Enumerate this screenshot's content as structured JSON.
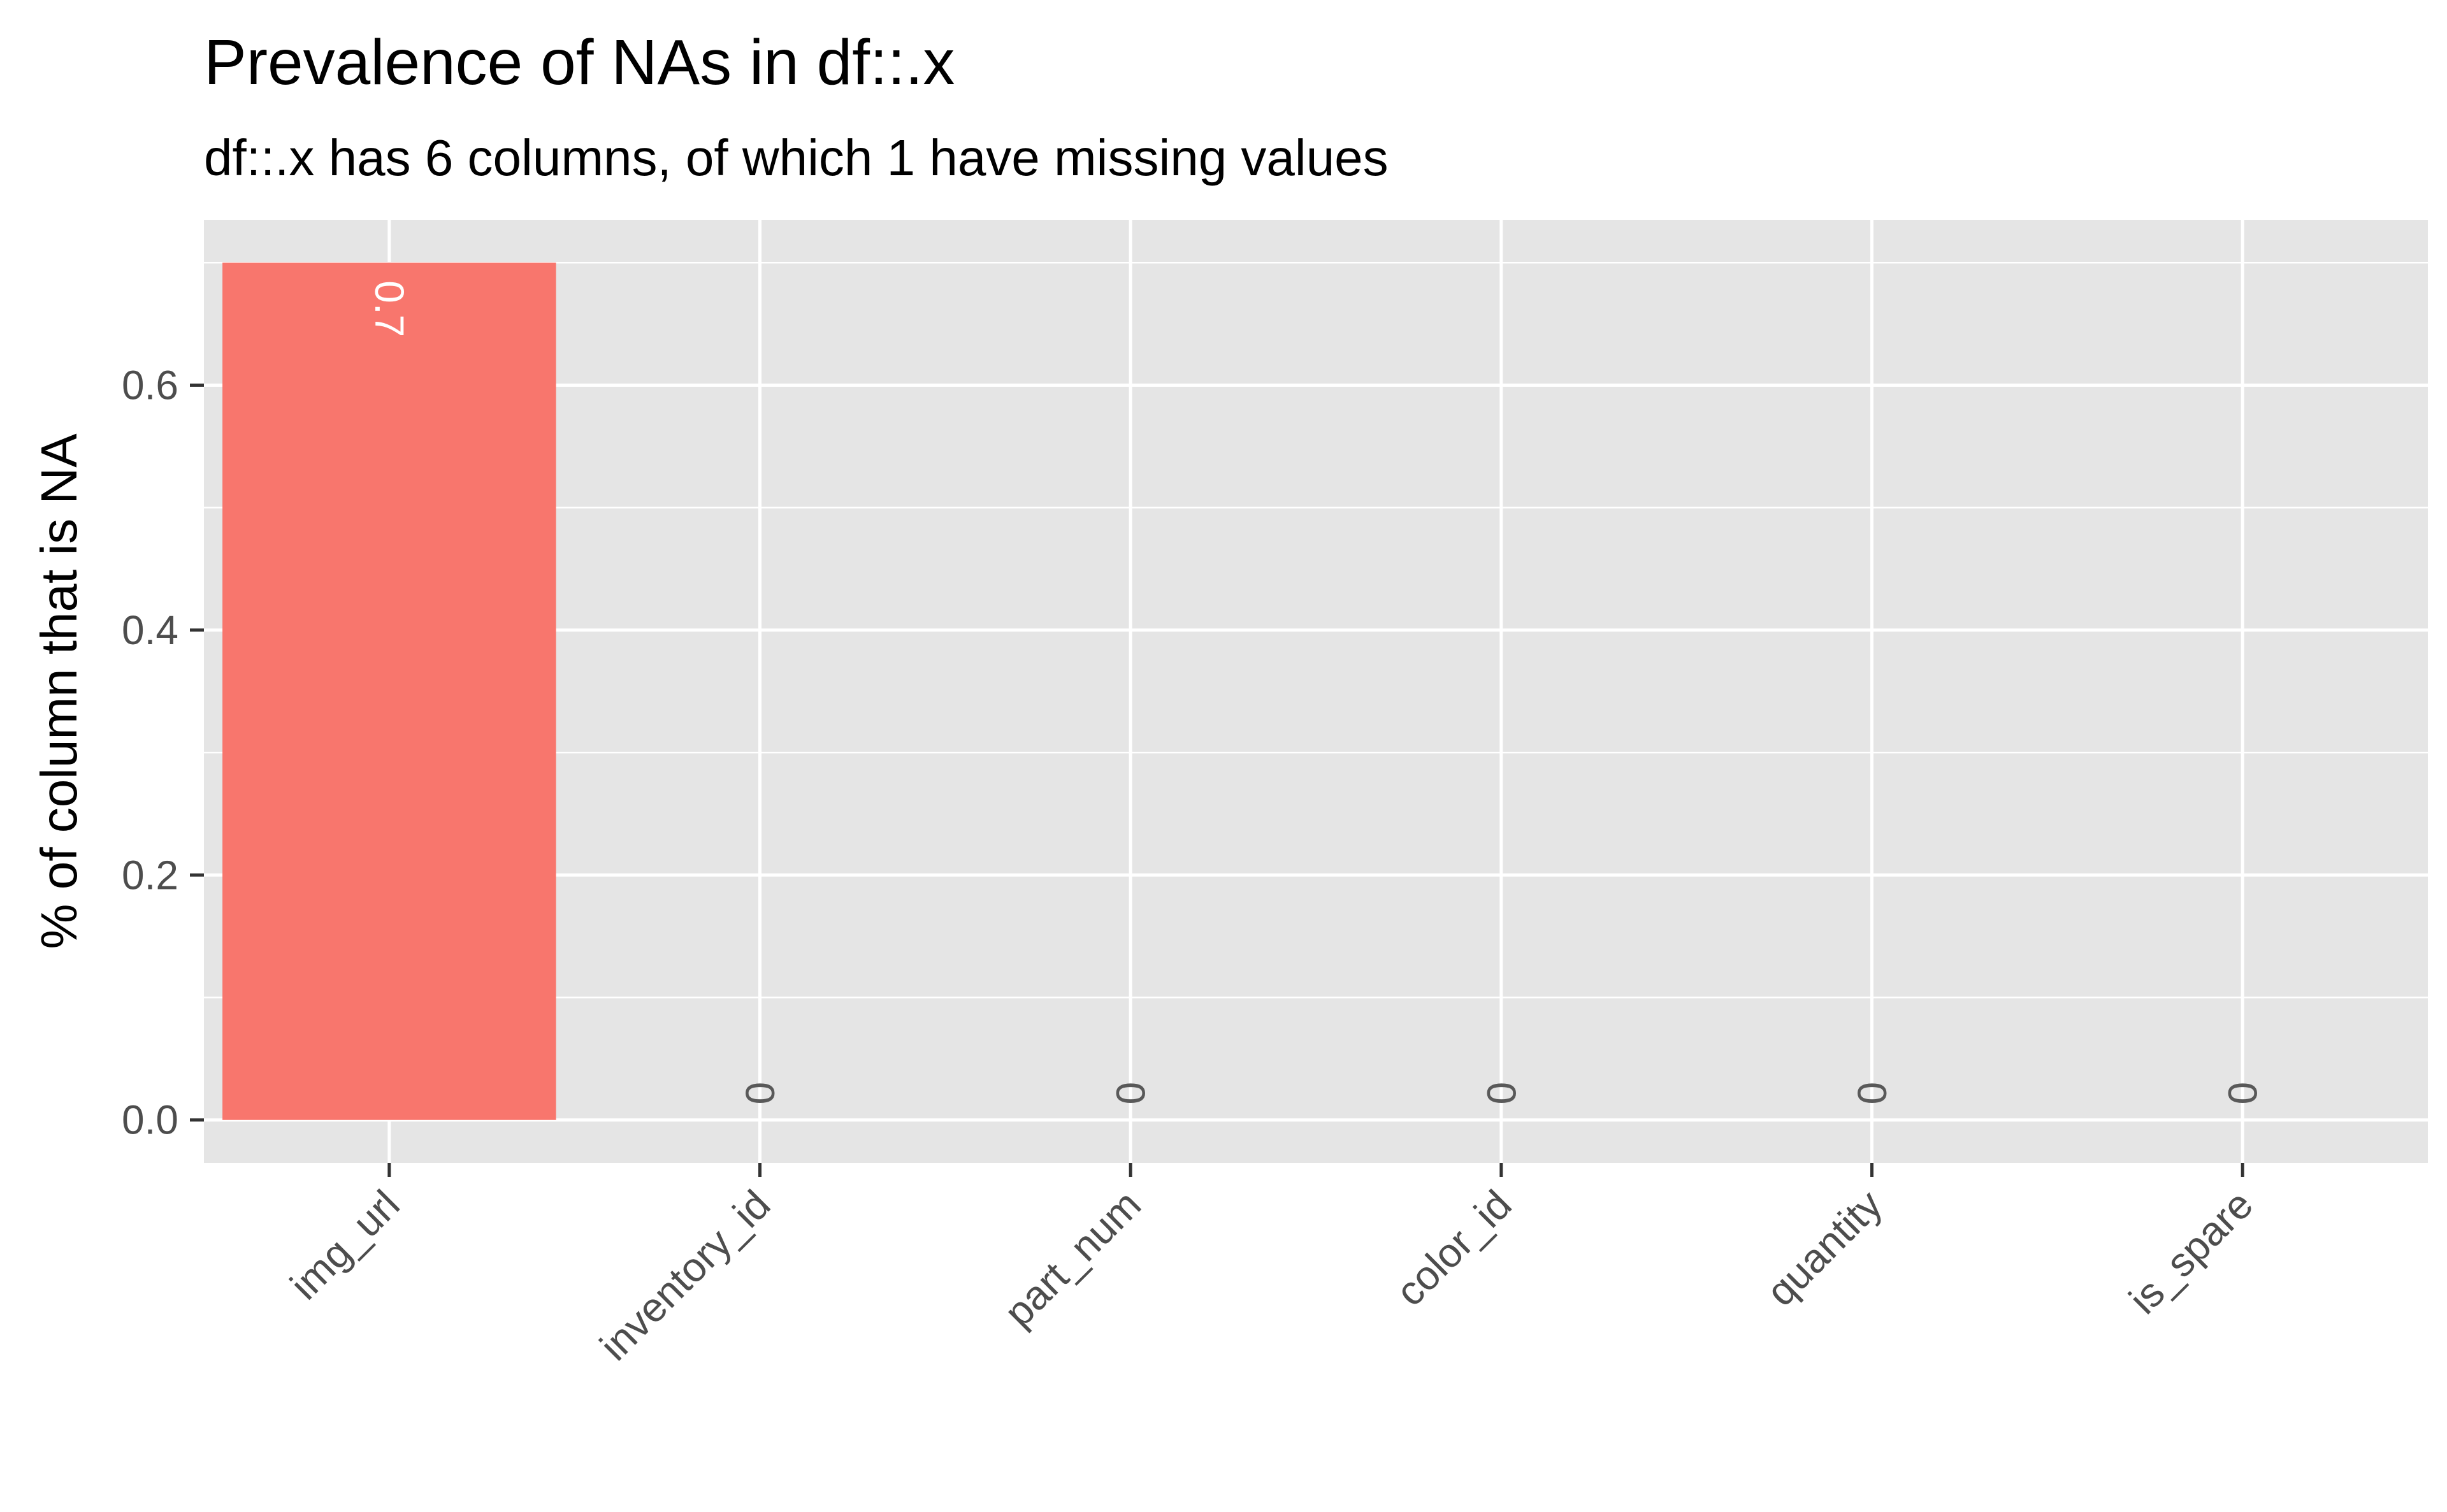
{
  "chart_data": {
    "type": "bar",
    "title": "Prevalence of NAs in df::.x",
    "subtitle": "df::.x has 6 columns, of which 1 have missing values",
    "xlabel": "",
    "ylabel": "% of column that is NA",
    "categories": [
      "img_url",
      "inventory_id",
      "part_num",
      "color_id",
      "quantity",
      "is_spare"
    ],
    "values": [
      0.7,
      0,
      0,
      0,
      0,
      0
    ],
    "value_labels": [
      "0.7",
      "0",
      "0",
      "0",
      "0",
      "0"
    ],
    "yticks": [
      0,
      0.2,
      0.4,
      0.6
    ],
    "ytick_labels": [
      "0.0",
      "0.2",
      "0.4",
      "0.6"
    ],
    "ylim": [
      -0.035,
      0.735
    ],
    "grid": true,
    "legend": "none",
    "colors": {
      "bar": "#F8766D",
      "panel": "#E5E5E5",
      "grid": "#FFFFFF",
      "label_on_bar": "#FFFFFF",
      "label_zero": "#595959"
    }
  }
}
